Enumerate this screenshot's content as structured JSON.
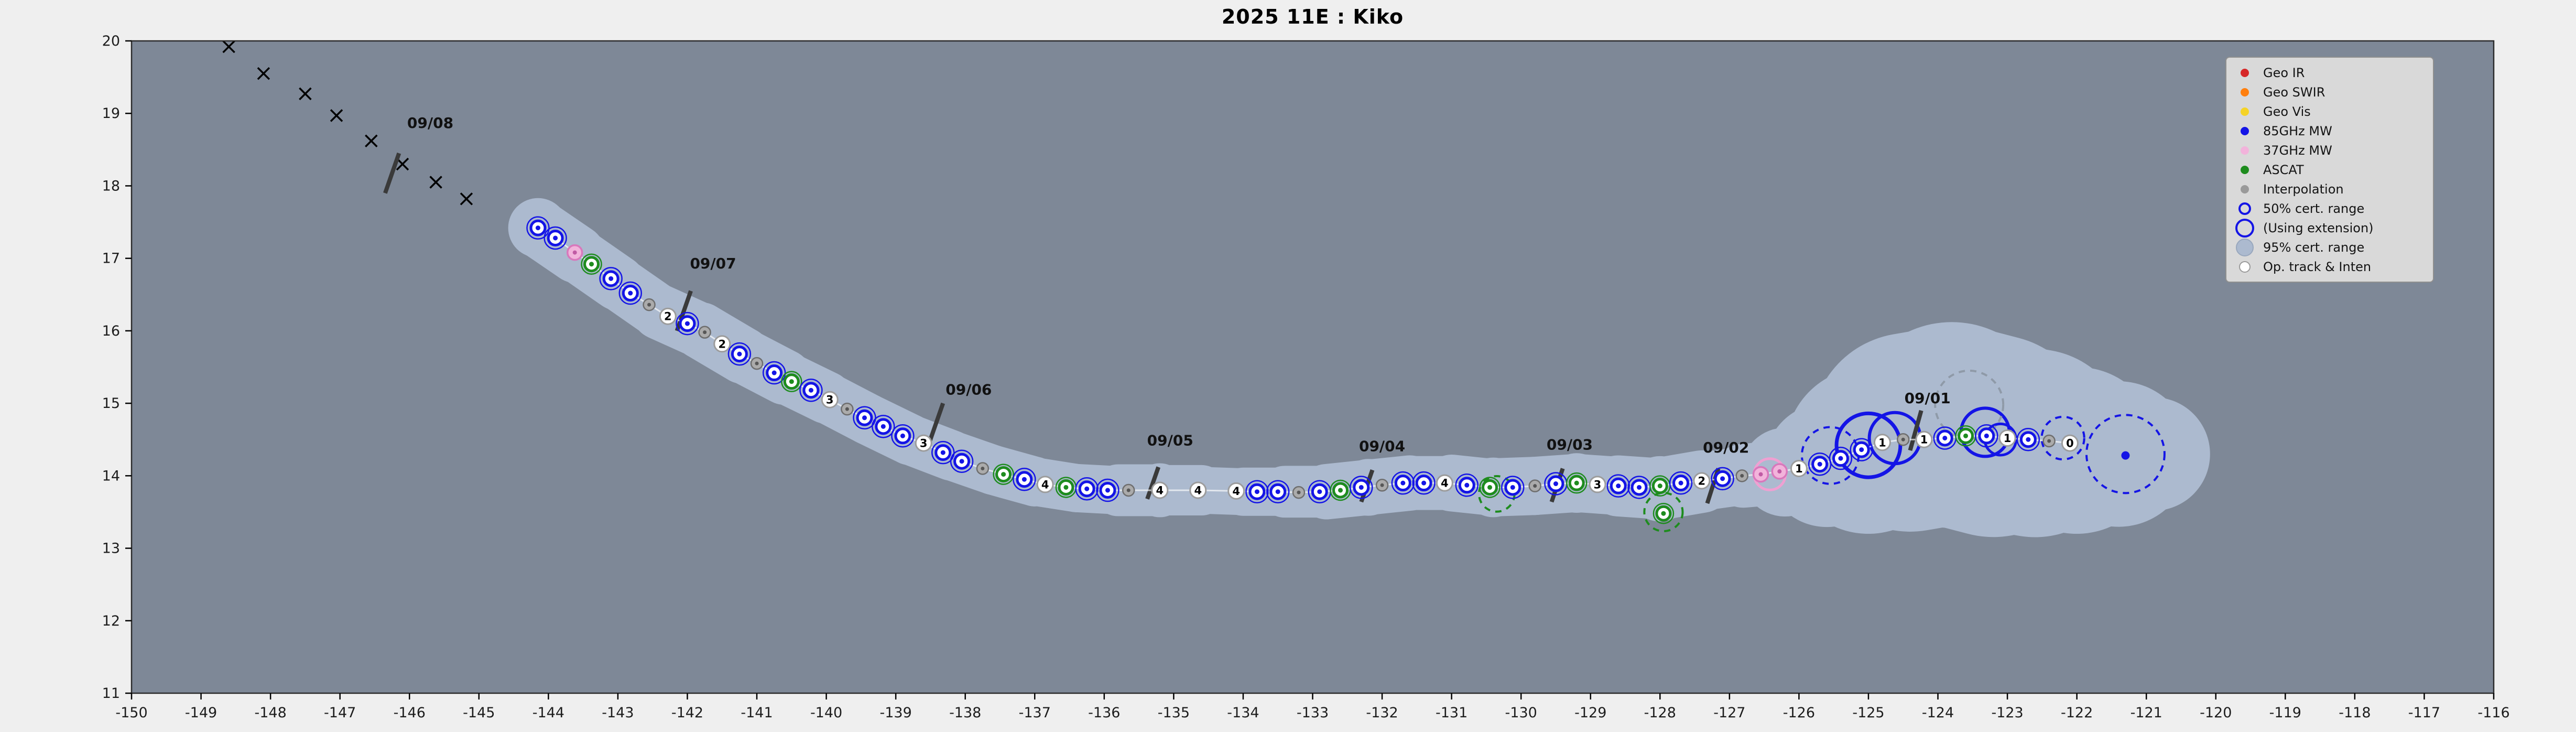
{
  "figure": {
    "title": "2025  11E :  Kiko"
  },
  "colors": {
    "plot_bg": "#7E8897",
    "band": "#ACBACF",
    "mw85": "#1414E6",
    "mw37_fill": "#F2B3DB",
    "mw37_edge": "#D878BC",
    "ascat": "#1E8C1E",
    "interp": "#ABABAB",
    "geo_ir": "#D62728",
    "geo_swir": "#FF7F0E",
    "geo_vis": "#F5D327",
    "op_white": "#FFFFFF"
  },
  "legend": {
    "items": [
      {
        "label": "Geo IR",
        "color": "#D62728",
        "marker": "dot"
      },
      {
        "label": "Geo SWIR",
        "color": "#FF7F0E",
        "marker": "dot"
      },
      {
        "label": "Geo Vis",
        "color": "#F5D327",
        "marker": "dot"
      },
      {
        "label": "85GHz MW",
        "color": "#1414E6",
        "marker": "dot"
      },
      {
        "label": "37GHz MW",
        "color": "#F2B3DB",
        "marker": "dot"
      },
      {
        "label": "ASCAT",
        "color": "#1E8C1E",
        "marker": "dot"
      },
      {
        "label": "Interpolation",
        "color": "#9A9A9A",
        "marker": "dot"
      },
      {
        "label": "50% cert. range",
        "color": "#1414E6",
        "marker": "ring-small"
      },
      {
        "label": "(Using extension)",
        "color": "#1414E6",
        "marker": "ring-large"
      },
      {
        "label": "95% cert. range",
        "color": "#ACBACF",
        "marker": "patch"
      },
      {
        "label": "Op. track & Inten",
        "color": "#FFFFFF",
        "marker": "white-dot"
      }
    ]
  },
  "chart_data": {
    "type": "scatter",
    "title": "2025  11E :  Kiko",
    "xlabel": "",
    "ylabel": "",
    "xlim": [
      -150,
      -116
    ],
    "ylim": [
      11,
      20
    ],
    "grid": false,
    "legend_position": "top-right",
    "x_ticks": [
      -150,
      -149,
      -148,
      -147,
      -146,
      -145,
      -144,
      -143,
      -142,
      -141,
      -140,
      -139,
      -138,
      -137,
      -136,
      -135,
      -134,
      -133,
      -132,
      -131,
      -130,
      -129,
      -128,
      -127,
      -126,
      -125,
      -124,
      -123,
      -122,
      -121,
      -120,
      -119,
      -118,
      -117,
      -116
    ],
    "y_ticks": [
      11,
      12,
      13,
      14,
      15,
      16,
      17,
      18,
      19,
      20
    ],
    "extrapolation_marks": [
      [
        -148.6,
        19.92
      ],
      [
        -148.1,
        19.55
      ],
      [
        -147.5,
        19.27
      ],
      [
        -147.05,
        18.97
      ],
      [
        -146.55,
        18.62
      ],
      [
        -146.1,
        18.3
      ],
      [
        -145.62,
        18.05
      ],
      [
        -145.18,
        17.82
      ]
    ],
    "uncertainty_band": [
      [
        -144.15,
        17.42,
        0.42
      ],
      [
        -143.6,
        17.06,
        0.4
      ],
      [
        -143.0,
        16.66,
        0.38
      ],
      [
        -142.4,
        16.26,
        0.38
      ],
      [
        -141.8,
        16.0,
        0.4
      ],
      [
        -141.2,
        15.66,
        0.4
      ],
      [
        -140.6,
        15.36,
        0.38
      ],
      [
        -140.0,
        15.08,
        0.36
      ],
      [
        -139.4,
        14.78,
        0.36
      ],
      [
        -138.8,
        14.5,
        0.36
      ],
      [
        -138.2,
        14.28,
        0.35
      ],
      [
        -137.6,
        14.08,
        0.35
      ],
      [
        -137.0,
        13.92,
        0.35
      ],
      [
        -136.4,
        13.83,
        0.33
      ],
      [
        -135.8,
        13.8,
        0.35
      ],
      [
        -135.2,
        13.8,
        0.38
      ],
      [
        -134.6,
        13.8,
        0.33
      ],
      [
        -134.0,
        13.78,
        0.33
      ],
      [
        -133.4,
        13.78,
        0.35
      ],
      [
        -132.8,
        13.78,
        0.38
      ],
      [
        -132.2,
        13.84,
        0.4
      ],
      [
        -131.6,
        13.9,
        0.38
      ],
      [
        -131.0,
        13.9,
        0.38
      ],
      [
        -130.4,
        13.84,
        0.42
      ],
      [
        -129.8,
        13.86,
        0.4
      ],
      [
        -129.2,
        13.9,
        0.42
      ],
      [
        -128.6,
        13.86,
        0.4
      ],
      [
        -128.0,
        13.82,
        0.46
      ],
      [
        -127.4,
        13.92,
        0.42
      ],
      [
        -126.8,
        14.0,
        0.4
      ],
      [
        -126.2,
        14.05,
        0.5
      ],
      [
        -125.6,
        14.15,
        0.75
      ],
      [
        -125.0,
        14.35,
        1.0
      ],
      [
        -124.4,
        14.6,
        1.35
      ],
      [
        -123.8,
        14.7,
        1.45
      ],
      [
        -123.2,
        14.55,
        1.4
      ],
      [
        -122.6,
        14.45,
        1.25
      ],
      [
        -122.0,
        14.35,
        1.1
      ],
      [
        -121.4,
        14.3,
        0.95
      ],
      [
        -120.9,
        14.3,
        0.65
      ]
    ],
    "fixes": [
      [
        -144.15,
        17.42,
        "mw85",
        ""
      ],
      [
        -143.9,
        17.28,
        "mw85",
        ""
      ],
      [
        -143.62,
        17.08,
        "mw37",
        ""
      ],
      [
        -143.38,
        16.92,
        "ascat",
        ""
      ],
      [
        -143.1,
        16.72,
        "mw85",
        ""
      ],
      [
        -142.82,
        16.52,
        "mw85",
        ""
      ],
      [
        -142.55,
        16.36,
        "interp",
        ""
      ],
      [
        -142.28,
        16.2,
        "op",
        "2"
      ],
      [
        -142.0,
        16.1,
        "mw85",
        ""
      ],
      [
        -141.75,
        15.98,
        "interp",
        ""
      ],
      [
        -141.5,
        15.82,
        "op",
        "2"
      ],
      [
        -141.25,
        15.68,
        "mw85",
        ""
      ],
      [
        -141.0,
        15.55,
        "interp",
        ""
      ],
      [
        -140.75,
        15.42,
        "mw85",
        ""
      ],
      [
        -140.5,
        15.3,
        "ascat",
        ""
      ],
      [
        -140.22,
        15.18,
        "mw85",
        ""
      ],
      [
        -139.95,
        15.05,
        "op",
        "3"
      ],
      [
        -139.7,
        14.92,
        "interp",
        ""
      ],
      [
        -139.45,
        14.8,
        "mw85",
        ""
      ],
      [
        -139.18,
        14.68,
        "mw85",
        ""
      ],
      [
        -138.9,
        14.55,
        "mw85",
        ""
      ],
      [
        -138.6,
        14.45,
        "op",
        "3"
      ],
      [
        -138.32,
        14.32,
        "mw85",
        ""
      ],
      [
        -138.05,
        14.2,
        "mw85",
        ""
      ],
      [
        -137.75,
        14.1,
        "interp",
        ""
      ],
      [
        -137.45,
        14.02,
        "ascat",
        ""
      ],
      [
        -137.15,
        13.95,
        "mw85",
        ""
      ],
      [
        -136.85,
        13.88,
        "op",
        "4"
      ],
      [
        -136.55,
        13.84,
        "ascat",
        ""
      ],
      [
        -136.25,
        13.82,
        "mw85",
        ""
      ],
      [
        -135.95,
        13.8,
        "mw85",
        ""
      ],
      [
        -135.65,
        13.8,
        "interp",
        ""
      ],
      [
        -135.2,
        13.8,
        "op",
        "4"
      ],
      [
        -134.65,
        13.8,
        "op",
        "4"
      ],
      [
        -134.1,
        13.79,
        "op",
        "4"
      ],
      [
        -133.8,
        13.78,
        "mw85",
        ""
      ],
      [
        -133.5,
        13.78,
        "mw85",
        ""
      ],
      [
        -133.2,
        13.77,
        "interp",
        ""
      ],
      [
        -132.9,
        13.78,
        "mw85",
        ""
      ],
      [
        -132.6,
        13.8,
        "ascat",
        ""
      ],
      [
        -132.3,
        13.84,
        "mw85",
        ""
      ],
      [
        -132.0,
        13.87,
        "interp",
        ""
      ],
      [
        -131.7,
        13.9,
        "mw85",
        ""
      ],
      [
        -131.4,
        13.9,
        "mw85",
        ""
      ],
      [
        -131.1,
        13.9,
        "op",
        "4"
      ],
      [
        -130.78,
        13.87,
        "mw85",
        ""
      ],
      [
        -130.45,
        13.84,
        "ascat",
        ""
      ],
      [
        -130.12,
        13.84,
        "mw85",
        ""
      ],
      [
        -129.8,
        13.86,
        "interp",
        ""
      ],
      [
        -129.5,
        13.89,
        "mw85",
        ""
      ],
      [
        -129.2,
        13.9,
        "ascat",
        ""
      ],
      [
        -128.9,
        13.88,
        "op",
        "3"
      ],
      [
        -128.6,
        13.86,
        "mw85",
        ""
      ],
      [
        -128.3,
        13.84,
        "mw85",
        ""
      ],
      [
        -128.0,
        13.86,
        "ascat",
        ""
      ],
      [
        -127.7,
        13.9,
        "mw85",
        ""
      ],
      [
        -127.4,
        13.93,
        "op",
        "2"
      ],
      [
        -127.1,
        13.96,
        "mw85",
        ""
      ],
      [
        -126.82,
        14.0,
        "interp",
        ""
      ],
      [
        -126.55,
        14.02,
        "mw37",
        ""
      ],
      [
        -126.28,
        14.06,
        "mw37",
        ""
      ],
      [
        -126.0,
        14.1,
        "op",
        "1"
      ],
      [
        -125.7,
        14.16,
        "mw85",
        ""
      ],
      [
        -125.4,
        14.24,
        "mw85",
        ""
      ],
      [
        -125.1,
        14.36,
        "mw85",
        ""
      ],
      [
        -124.8,
        14.46,
        "op",
        "1"
      ],
      [
        -124.5,
        14.5,
        "interp",
        ""
      ],
      [
        -124.2,
        14.5,
        "op",
        "1"
      ],
      [
        -123.9,
        14.52,
        "mw85",
        ""
      ],
      [
        -123.6,
        14.55,
        "ascat",
        ""
      ],
      [
        -123.3,
        14.55,
        "mw85",
        ""
      ],
      [
        -123.0,
        14.52,
        "op",
        "1"
      ],
      [
        -122.7,
        14.5,
        "mw85",
        ""
      ],
      [
        -122.4,
        14.48,
        "interp",
        ""
      ],
      [
        -122.1,
        14.45,
        "op",
        "0"
      ],
      [
        -121.3,
        14.28,
        "dot85",
        ""
      ]
    ],
    "extra_fixes": [
      [
        -127.95,
        13.48,
        "ascat",
        ""
      ]
    ],
    "cert_circles": [
      {
        "lon": -125.0,
        "lat": 14.42,
        "r": 0.45,
        "color": "#1414E6",
        "w": 7,
        "dashed": false
      },
      {
        "lon": -124.62,
        "lat": 14.52,
        "r": 0.36,
        "color": "#1414E6",
        "w": 6,
        "dashed": false
      },
      {
        "lon": -123.32,
        "lat": 14.6,
        "r": 0.34,
        "color": "#1414E6",
        "w": 6,
        "dashed": false
      },
      {
        "lon": -123.1,
        "lat": 14.5,
        "r": 0.22,
        "color": "#1414E6",
        "w": 5,
        "dashed": false
      },
      {
        "lon": -126.42,
        "lat": 14.02,
        "r": 0.22,
        "color": "#EFA0D2",
        "w": 5,
        "dashed": false
      },
      {
        "lon": -121.3,
        "lat": 14.3,
        "r": 0.55,
        "color": "#1414E6",
        "w": 4,
        "dashed": true
      },
      {
        "lon": -125.55,
        "lat": 14.28,
        "r": 0.4,
        "color": "#1414E6",
        "w": 4,
        "dashed": true
      },
      {
        "lon": -123.55,
        "lat": 14.98,
        "r": 0.48,
        "color": "#8F9AA8",
        "w": 4,
        "dashed": true
      },
      {
        "lon": -122.2,
        "lat": 14.52,
        "r": 0.3,
        "color": "#1414E6",
        "w": 4,
        "dashed": true
      },
      {
        "lon": -127.95,
        "lat": 13.5,
        "r": 0.27,
        "color": "#1E8C1E",
        "w": 4,
        "dashed": true
      },
      {
        "lon": -130.35,
        "lat": 13.75,
        "r": 0.25,
        "color": "#1E8C1E",
        "w": 4,
        "dashed": true
      }
    ],
    "date_labels": [
      {
        "text": "09/08",
        "lx": -145.7,
        "ly": 18.8,
        "x1": -146.35,
        "y1": 17.9,
        "x2": -146.15,
        "y2": 18.45
      },
      {
        "text": "09/07",
        "lx": -141.63,
        "ly": 16.86,
        "x1": -142.15,
        "y1": 16.0,
        "x2": -141.95,
        "y2": 16.55
      },
      {
        "text": "09/06",
        "lx": -137.95,
        "ly": 15.12,
        "x1": -138.52,
        "y1": 14.45,
        "x2": -138.32,
        "y2": 15.0
      },
      {
        "text": "09/05",
        "lx": -135.05,
        "ly": 14.42,
        "x1": -135.38,
        "y1": 13.68,
        "x2": -135.22,
        "y2": 14.12
      },
      {
        "text": "09/04",
        "lx": -132.0,
        "ly": 14.34,
        "x1": -132.3,
        "y1": 13.64,
        "x2": -132.14,
        "y2": 14.08
      },
      {
        "text": "09/03",
        "lx": -129.3,
        "ly": 14.36,
        "x1": -129.56,
        "y1": 13.64,
        "x2": -129.4,
        "y2": 14.1
      },
      {
        "text": "09/02",
        "lx": -127.05,
        "ly": 14.32,
        "x1": -127.32,
        "y1": 13.62,
        "x2": -127.16,
        "y2": 14.1
      },
      {
        "text": "09/01",
        "lx": -124.15,
        "ly": 15.0,
        "x1": -124.4,
        "y1": 14.35,
        "x2": -124.24,
        "y2": 14.9
      }
    ]
  }
}
